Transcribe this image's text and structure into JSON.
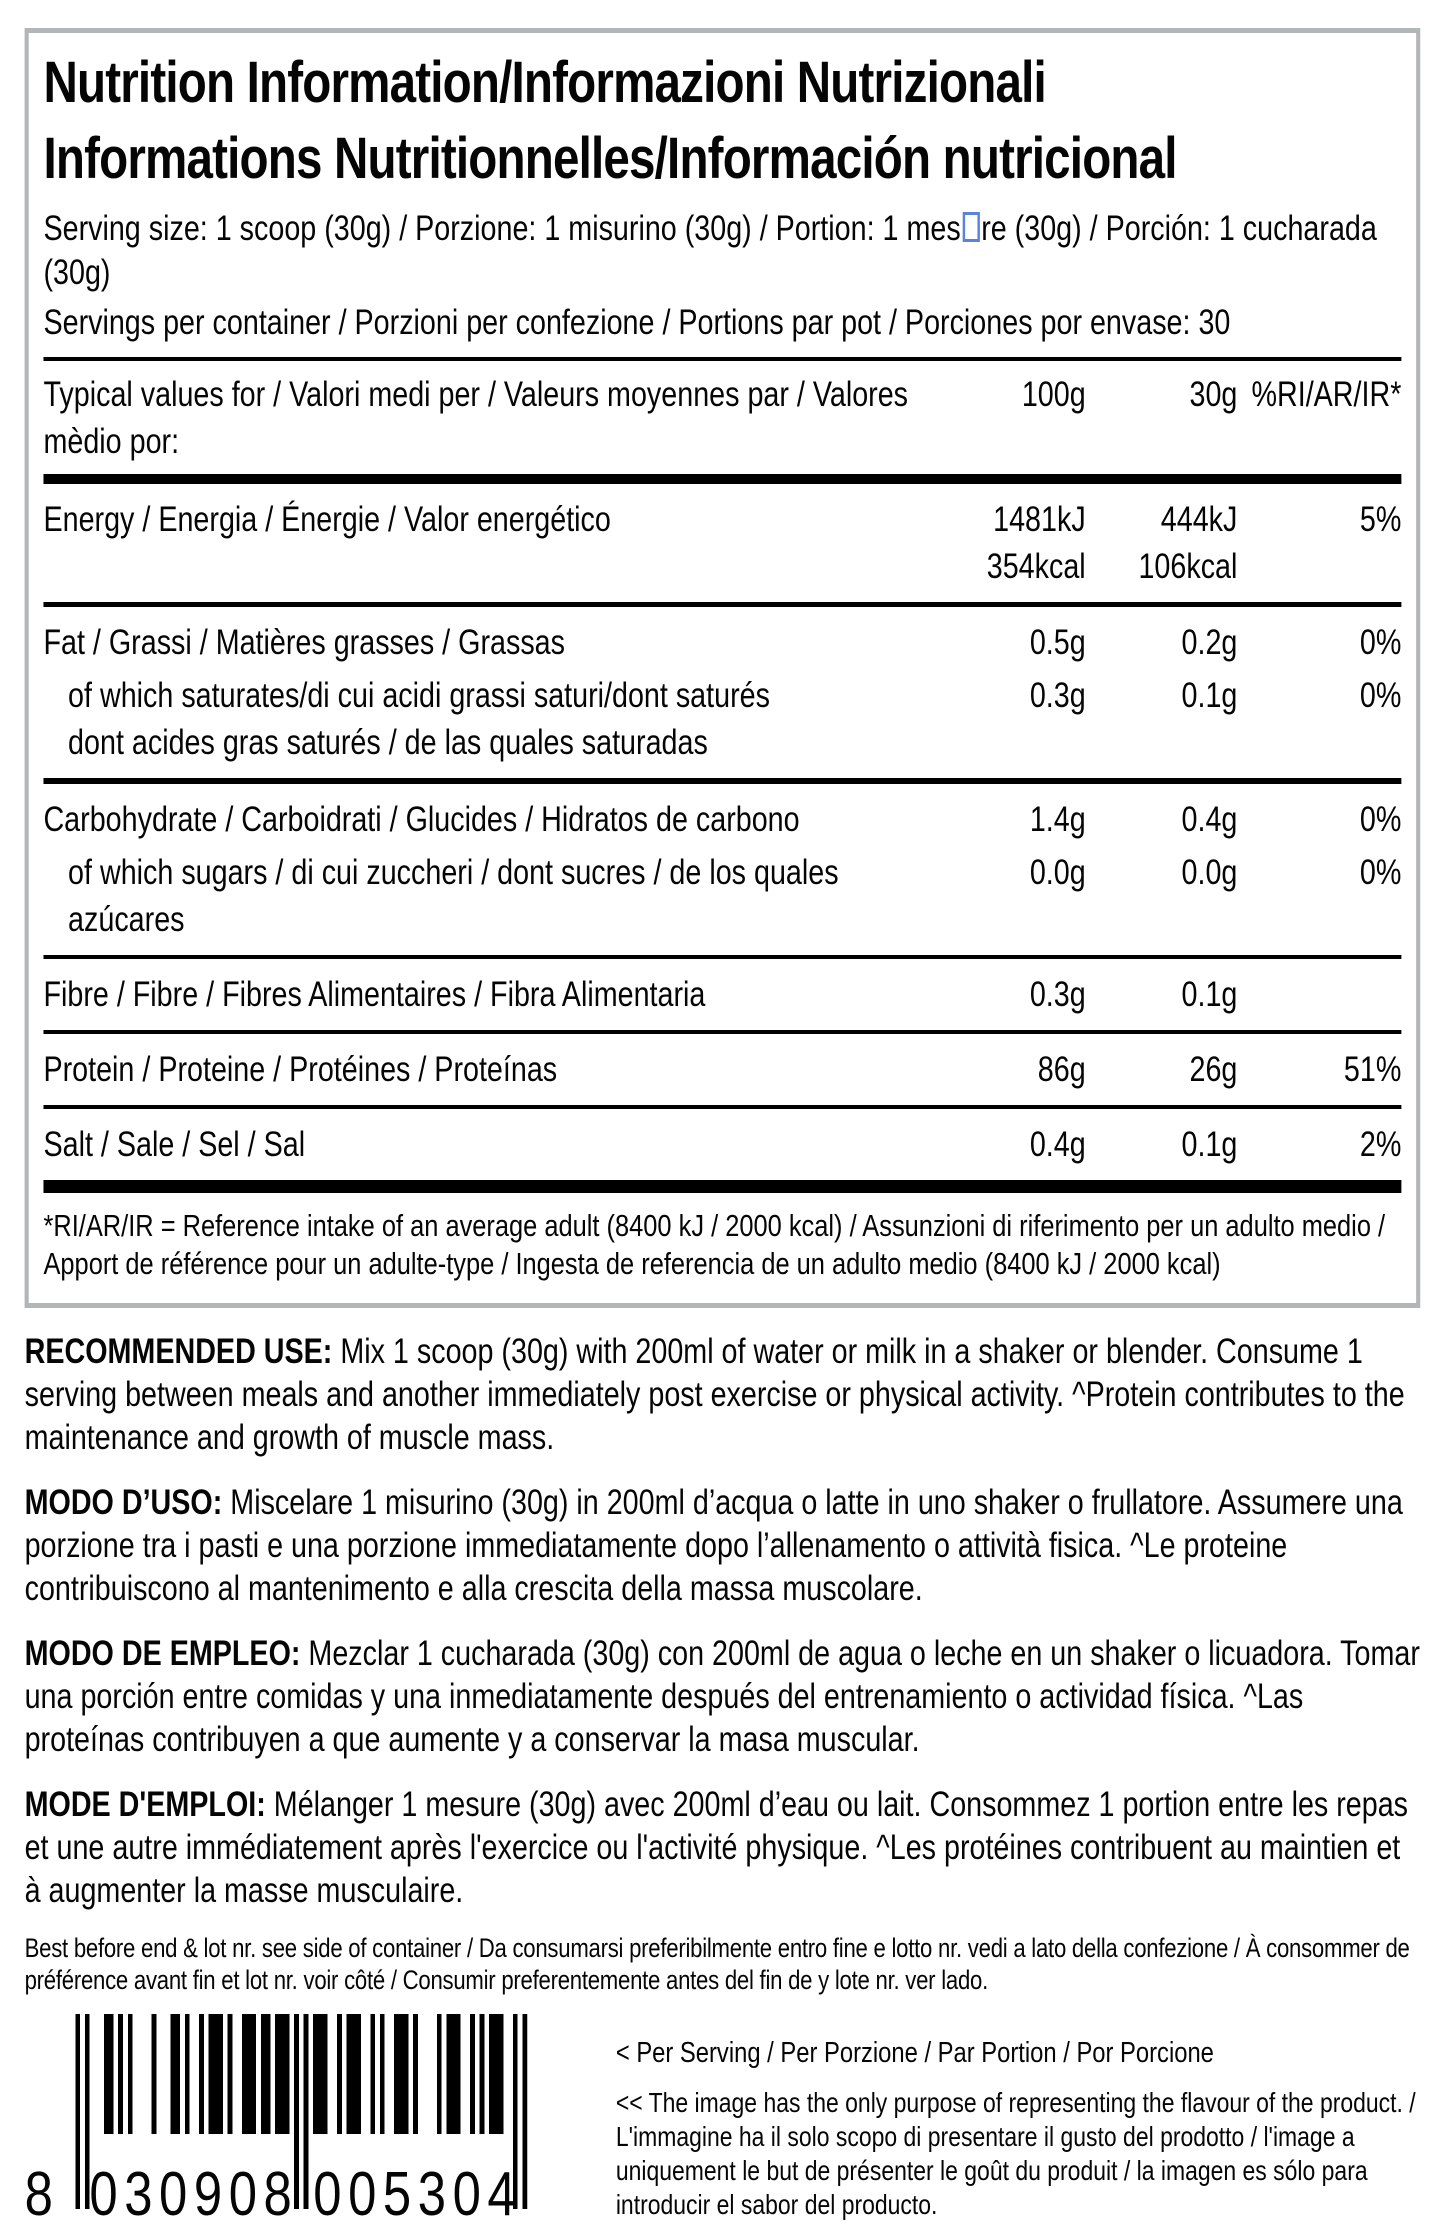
{
  "header": {
    "title_line1": "Nutrition Information/Informazioni Nutrizionali",
    "title_line2": "Informations Nutritionnelles/Información nutricional",
    "serving_size_part1": "Serving size: 1 scoop (30g) / Porzione: 1 misurino (30g) / Portion: 1 mes",
    "serving_size_part2": "re (30g) / Porción: 1 cucharada (30g)",
    "servings_per_container": "Servings per container / Porzioni per confezione / Portions par pot / Porciones por envase: 30"
  },
  "table": {
    "columns": {
      "label": "Typical values for / Valori medi per / Valeurs moyennes par / Valores mèdio por:",
      "per100": "100g",
      "per30": "30g",
      "ri": "%RI/AR/IR*"
    },
    "rows": [
      {
        "label": "Energy / Energia / Énergie / Valor energético",
        "per100_l1": "1481kJ",
        "per100_l2": "354kcal",
        "per30_l1": "444kJ",
        "per30_l2": "106kcal",
        "ri": "5%"
      },
      {
        "label": "Fat / Grassi / Matières grasses / Grassas",
        "per100": "0.5g",
        "per30": "0.2g",
        "ri": "0%"
      },
      {
        "label": "of which saturates/di cui acidi grassi saturi/dont saturés",
        "label_line2": "dont acides gras saturés / de las quales saturadas",
        "per100": "0.3g",
        "per30": "0.1g",
        "ri": "0%"
      },
      {
        "label": "Carbohydrate / Carboidrati / Glucides / Hidratos de carbono",
        "per100": "1.4g",
        "per30": "0.4g",
        "ri": "0%"
      },
      {
        "label": "of which sugars / di cui zuccheri / dont sucres / de los quales azúcares",
        "per100": "0.0g",
        "per30": "0.0g",
        "ri": "0%"
      },
      {
        "label": "Fibre / Fibre / Fibres Alimentaires / Fibra Alimentaria",
        "per100": "0.3g",
        "per30": "0.1g",
        "ri": ""
      },
      {
        "label": "Protein / Proteine / Protéines / Proteínas",
        "per100": "86g",
        "per30": "26g",
        "ri": "51%"
      },
      {
        "label": "Salt / Sale / Sel / Sal",
        "per100": "0.4g",
        "per30": "0.1g",
        "ri": "2%"
      }
    ],
    "footnote": "*RI/AR/IR = Reference intake of an average adult (8400 kJ / 2000 kcal) / Assunzioni di riferimento per un adulto medio / Apport de référence pour un adulte-type / Ingesta de referencia de un adulto medio (8400 kJ / 2000 kcal)"
  },
  "usage": [
    {
      "label": "RECOMMENDED USE:",
      "text": "Mix 1 scoop (30g) with 200ml of water or milk in a shaker or blender. Consume 1 serving between meals and another immediately post exercise or physical activity. ^Protein contributes to the maintenance and growth of muscle mass."
    },
    {
      "label": "MODO D’USO:",
      "text": "Miscelare 1 misurino (30g) in 200ml d’acqua o latte in uno shaker o frullatore. Assumere una porzione tra i pasti e una porzione immediatamente dopo l’allenamento o attività fisica. ^Le proteine contribuiscono al mantenimento e alla crescita della massa muscolare."
    },
    {
      "label": "MODO DE EMPLEO:",
      "text": "Mezclar 1 cucharada (30g) con 200ml de agua o leche en un shaker o licuadora. Tomar una porción entre comidas y una inmediatamente después del entrenamiento o actividad física. ^Las proteínas contribuyen a que aumente y a conservar la masa muscular."
    },
    {
      "label": "MODE D'EMPLOI:",
      "text": "Mélanger 1 mesure (30g) avec 200ml d’eau ou lait. Consommez 1 portion entre les repas et une autre immédiatement après l'exercice ou l'activité physique. ^Les protéines contribuent au maintien et à augmenter la masse musculaire."
    }
  ],
  "best_before": "Best before end & lot nr. see side of container / Da consumarsi preferibilmente entro fine e lotto nr. vedi a lato della confezione / À consommer de préférence avant fin et lot nr. voir côté / Consumir preferentemente antes del fin de y lote nr. ver lado.",
  "barcode": {
    "digits": "8030908005304",
    "display_first": "8",
    "display_left": "030908",
    "display_right": "005304"
  },
  "notes": {
    "per_serving": "< Per Serving / Per Porzione / Par Portion / Por Porcione",
    "image_note": "<< The image has the only purpose of representing the flavour of the product. / L'immagine ha il solo scopo di presentare il gusto del prodotto / l'image a uniquement le but de présenter le goût du produit / la imagen es sólo para introducir el sabor del producto."
  },
  "colors": {
    "text_black": "#050505",
    "panel_border_gray": "#b3b6b8",
    "missing_glyph_blue": "#5b82dd"
  }
}
